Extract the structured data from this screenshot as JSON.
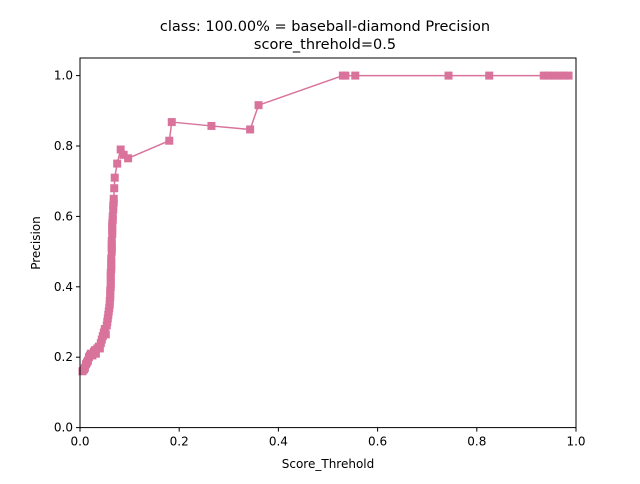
{
  "chart_data": {
    "type": "line",
    "title_line1": "class: 100.00% = baseball-diamond Precision",
    "title_line2": "score_threhold=0.5",
    "xlabel": "Score_Threhold",
    "ylabel": "Precision",
    "xlim": [
      0.0,
      1.0
    ],
    "ylim": [
      0.0,
      1.05
    ],
    "xticks": [
      0.0,
      0.2,
      0.4,
      0.6,
      0.8,
      1.0
    ],
    "xtick_labels": [
      "0.0",
      "0.2",
      "0.4",
      "0.6",
      "0.8",
      "1.0"
    ],
    "yticks": [
      0.0,
      0.2,
      0.4,
      0.6,
      0.8,
      1.0
    ],
    "ytick_labels": [
      "0.0",
      "0.2",
      "0.4",
      "0.6",
      "0.8",
      "1.0"
    ],
    "grid": false,
    "series": [
      {
        "color": "#d9739b",
        "marker": "square",
        "points": [
          [
            0.005,
            0.16
          ],
          [
            0.008,
            0.165
          ],
          [
            0.01,
            0.17
          ],
          [
            0.012,
            0.18
          ],
          [
            0.014,
            0.185
          ],
          [
            0.016,
            0.19
          ],
          [
            0.018,
            0.2
          ],
          [
            0.02,
            0.205
          ],
          [
            0.022,
            0.21
          ],
          [
            0.025,
            0.205
          ],
          [
            0.028,
            0.215
          ],
          [
            0.03,
            0.22
          ],
          [
            0.032,
            0.21
          ],
          [
            0.035,
            0.225
          ],
          [
            0.038,
            0.23
          ],
          [
            0.04,
            0.225
          ],
          [
            0.042,
            0.24
          ],
          [
            0.044,
            0.25
          ],
          [
            0.046,
            0.26
          ],
          [
            0.048,
            0.27
          ],
          [
            0.05,
            0.28
          ],
          [
            0.052,
            0.265
          ],
          [
            0.054,
            0.29
          ],
          [
            0.055,
            0.3
          ],
          [
            0.056,
            0.31
          ],
          [
            0.057,
            0.32
          ],
          [
            0.058,
            0.33
          ],
          [
            0.059,
            0.34
          ],
          [
            0.06,
            0.35
          ],
          [
            0.06,
            0.36
          ],
          [
            0.061,
            0.37
          ],
          [
            0.061,
            0.38
          ],
          [
            0.061,
            0.39
          ],
          [
            0.062,
            0.4
          ],
          [
            0.062,
            0.41
          ],
          [
            0.062,
            0.42
          ],
          [
            0.062,
            0.43
          ],
          [
            0.062,
            0.44
          ],
          [
            0.063,
            0.45
          ],
          [
            0.063,
            0.46
          ],
          [
            0.063,
            0.47
          ],
          [
            0.063,
            0.48
          ],
          [
            0.064,
            0.5
          ],
          [
            0.064,
            0.51
          ],
          [
            0.064,
            0.52
          ],
          [
            0.064,
            0.53
          ],
          [
            0.065,
            0.55
          ],
          [
            0.065,
            0.56
          ],
          [
            0.065,
            0.57
          ],
          [
            0.065,
            0.58
          ],
          [
            0.066,
            0.59
          ],
          [
            0.066,
            0.6
          ],
          [
            0.067,
            0.62
          ],
          [
            0.067,
            0.63
          ],
          [
            0.068,
            0.64
          ],
          [
            0.068,
            0.65
          ],
          [
            0.069,
            0.68
          ],
          [
            0.07,
            0.71
          ],
          [
            0.075,
            0.75
          ],
          [
            0.082,
            0.79
          ],
          [
            0.088,
            0.775
          ],
          [
            0.097,
            0.765
          ],
          [
            0.18,
            0.815
          ],
          [
            0.185,
            0.868
          ],
          [
            0.265,
            0.857
          ],
          [
            0.343,
            0.847
          ],
          [
            0.36,
            0.916
          ],
          [
            0.53,
            1.0
          ],
          [
            0.535,
            1.0
          ],
          [
            0.555,
            1.0
          ],
          [
            0.743,
            1.0
          ],
          [
            0.825,
            1.0
          ],
          [
            0.935,
            1.0
          ],
          [
            0.945,
            1.0
          ],
          [
            0.955,
            1.0
          ],
          [
            0.965,
            1.0
          ],
          [
            0.975,
            1.0
          ],
          [
            0.985,
            1.0
          ]
        ]
      }
    ]
  }
}
